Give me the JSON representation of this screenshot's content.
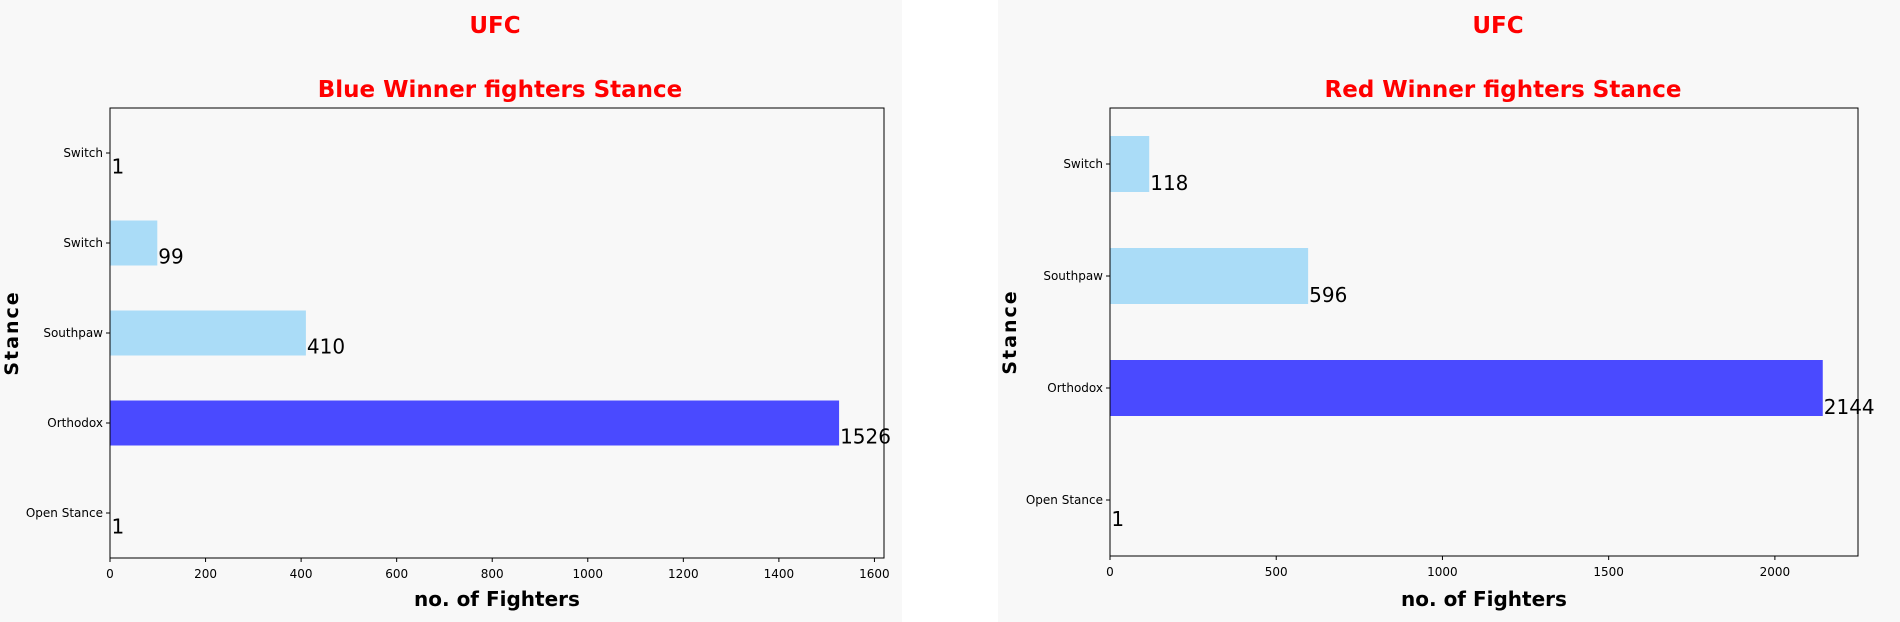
{
  "chart_data": [
    {
      "type": "bar",
      "orientation": "horizontal",
      "title": "UFC",
      "subtitle": "Blue Winner fighters Stance",
      "xlabel": "no. of Fighters",
      "ylabel": "Stance",
      "categories": [
        "Open Stance",
        "Orthodox",
        "Southpaw",
        "Switch",
        "Switch"
      ],
      "values": [
        1,
        1526,
        410,
        99,
        1
      ],
      "bar_colors": [
        "#4a4aff",
        "#4a4aff",
        "#aadcf7",
        "#aadcf7",
        "#aadcf7"
      ],
      "xlim": [
        0,
        1620
      ],
      "xticks": [
        0,
        200,
        400,
        600,
        800,
        1000,
        1200,
        1400,
        1600
      ],
      "grid": false,
      "title_color": "#ff0000"
    },
    {
      "type": "bar",
      "orientation": "horizontal",
      "title": "UFC",
      "subtitle": "Red Winner fighters Stance",
      "xlabel": "no. of Fighters",
      "ylabel": "Stance",
      "categories": [
        "Open Stance",
        "Orthodox",
        "Southpaw",
        "Switch"
      ],
      "values": [
        1,
        2144,
        596,
        118
      ],
      "bar_colors": [
        "#4a4aff",
        "#4a4aff",
        "#aadcf7",
        "#aadcf7"
      ],
      "xlim": [
        0,
        2250
      ],
      "xticks": [
        0,
        500,
        1000,
        1500,
        2000
      ],
      "grid": false,
      "title_color": "#ff0000"
    }
  ]
}
